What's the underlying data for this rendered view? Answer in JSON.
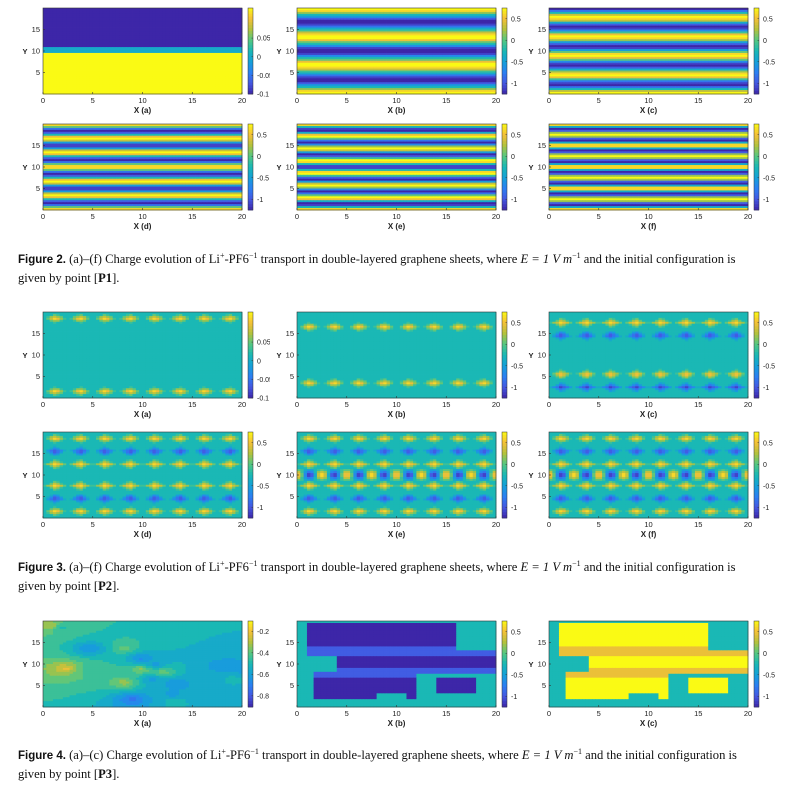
{
  "figures": [
    {
      "id": "fig2",
      "caption": {
        "label": "Figure 2.",
        "pre": " (a)–(f) Charge evolution of Li",
        "sup1": "+",
        "mid": "-PF6",
        "sup2": "−1",
        "post": " transport in double-layered graphene sheets, where ",
        "eq": "E = 1 V m",
        "eq_sup": "−1",
        "end": " and the initial configuration is given by point [",
        "point": "P1",
        "close": "]."
      },
      "panels": [
        {
          "xlabel": "X (a)",
          "pattern": "halves",
          "cb_ticks": [
            "0.05",
            "0",
            "-0.05",
            "-0.1"
          ],
          "cb_pos": [
            0.35,
            0.567,
            0.783,
            1.0
          ]
        },
        {
          "xlabel": "X (b)",
          "pattern": "bands6",
          "cb_ticks": [
            "0.5",
            "0",
            "-0.5",
            "-1"
          ]
        },
        {
          "xlabel": "X (c)",
          "pattern": "bands9",
          "cb_ticks": [
            "0.5",
            "0",
            "-0.5",
            "-1"
          ]
        },
        {
          "xlabel": "X (d)",
          "pattern": "bands12",
          "cb_ticks": [
            "0.5",
            "0",
            "-0.5",
            "-1"
          ]
        },
        {
          "xlabel": "X (e)",
          "pattern": "bands14",
          "cb_ticks": [
            "0.5",
            "0",
            "-0.5",
            "-1"
          ]
        },
        {
          "xlabel": "X (f)",
          "pattern": "bands16",
          "cb_ticks": [
            "0.5",
            "0",
            "-0.5",
            "-1"
          ]
        }
      ]
    },
    {
      "id": "fig3",
      "caption": {
        "label": "Figure 3.",
        "pre": " (a)–(f) Charge evolution of Li",
        "sup1": "+",
        "mid": "-PF6",
        "sup2": "−1",
        "post": " transport in double-layered graphene sheets, where ",
        "eq": "E = 1 V m",
        "eq_sup": "−1",
        "end": " and the initial configuration is given by point [",
        "point": "P2",
        "close": "]."
      },
      "panels": [
        {
          "xlabel": "X (a)",
          "pattern": "diamonds",
          "rows": [
            [
              1.5,
              1
            ],
            [
              18.5,
              1
            ]
          ],
          "cb_ticks": [
            "0.05",
            "0",
            "-0.05",
            "-0.1"
          ],
          "cb_pos": [
            0.35,
            0.567,
            0.783,
            1.0
          ]
        },
        {
          "xlabel": "X (b)",
          "pattern": "diamonds",
          "rows": [
            [
              16.5,
              1
            ],
            [
              3.5,
              1
            ]
          ],
          "cb_ticks": [
            "0.5",
            "0",
            "-0.5",
            "-1"
          ]
        },
        {
          "xlabel": "X (c)",
          "pattern": "diamonds",
          "rows": [
            [
              17.5,
              1
            ],
            [
              14.5,
              -1
            ],
            [
              5.5,
              1
            ],
            [
              2.5,
              -1
            ]
          ],
          "cb_ticks": [
            "0.5",
            "0",
            "-0.5",
            "-1"
          ]
        },
        {
          "xlabel": "X (d)",
          "pattern": "diamonds",
          "rows": [
            [
              18.5,
              1
            ],
            [
              15.5,
              -1
            ],
            [
              12.5,
              1
            ],
            [
              7.5,
              1
            ],
            [
              4.5,
              -1
            ],
            [
              1.5,
              1
            ]
          ],
          "cb_ticks": [
            "0.5",
            "0",
            "-0.5",
            "-1"
          ]
        },
        {
          "xlabel": "X (e)",
          "pattern": "diamonds",
          "rows": [
            [
              18.5,
              1
            ],
            [
              15.5,
              -1
            ],
            [
              12.5,
              1
            ],
            [
              7.5,
              1
            ],
            [
              4.5,
              -1
            ],
            [
              1.5,
              1
            ]
          ],
          "center": true,
          "cb_ticks": [
            "0.5",
            "0",
            "-0.5",
            "-1"
          ]
        },
        {
          "xlabel": "X (f)",
          "pattern": "diamonds",
          "rows": [
            [
              18.5,
              1
            ],
            [
              15.5,
              -1
            ],
            [
              12.5,
              1
            ],
            [
              7.5,
              1
            ],
            [
              4.5,
              -1
            ],
            [
              1.5,
              1
            ]
          ],
          "center": true,
          "cb_ticks": [
            "0.5",
            "0",
            "-0.5",
            "-1"
          ]
        }
      ]
    },
    {
      "id": "fig4",
      "caption": {
        "label": "Figure 4.",
        "pre": " (a)–(c) Charge evolution of Li",
        "sup1": "+",
        "mid": "-PF6",
        "sup2": "−1",
        "post": " transport in double-layered graphene sheets, where ",
        "eq": "E = 1 V m",
        "eq_sup": "−1",
        "end": " and the initial configuration is given by point [",
        "point": "P3",
        "close": "]."
      },
      "panels": [
        {
          "xlabel": "X (a)",
          "pattern": "noise",
          "cb_ticks": [
            "-0.2",
            "-0.4",
            "-0.6",
            "-0.8"
          ],
          "cb_pos": [
            0.12,
            0.37,
            0.62,
            0.87
          ]
        },
        {
          "xlabel": "X (b)",
          "pattern": "blob",
          "sign": -1,
          "cb_ticks": [
            "0.5",
            "0",
            "-0.5",
            "-1"
          ]
        },
        {
          "xlabel": "X (c)",
          "pattern": "blob",
          "sign": 1,
          "cb_ticks": [
            "0.5",
            "0",
            "-0.5",
            "-1"
          ]
        }
      ]
    }
  ],
  "axis": {
    "ylabel": "Y",
    "xticks": [
      "0",
      "5",
      "10",
      "15",
      "20"
    ],
    "yticks": [
      "5",
      "10",
      "15"
    ]
  }
}
